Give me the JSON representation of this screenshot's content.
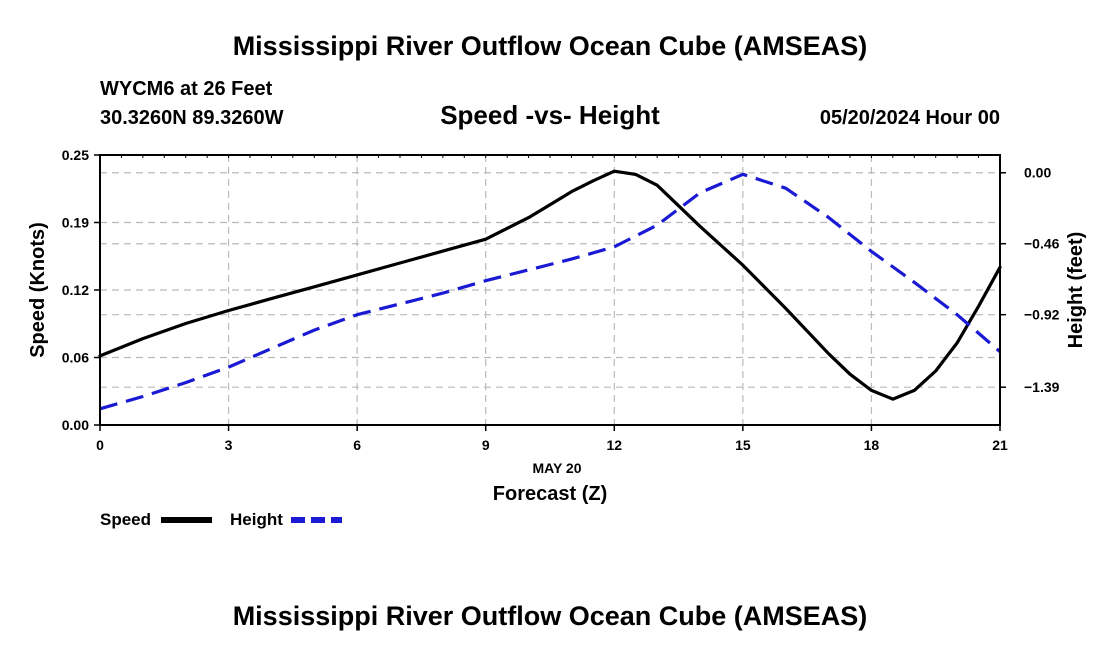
{
  "page_title": "Mississippi River Outflow Ocean Cube (AMSEAS)",
  "footer_title": "Mississippi River Outflow Ocean Cube (AMSEAS)",
  "station": "WYCM6 at 26 Feet",
  "coordinates": "30.3260N  89.3260W",
  "datetime": "05/20/2024 Hour 00",
  "chart_data": {
    "type": "line",
    "title": "Speed -vs- Height",
    "xlabel": "Forecast (Z)",
    "date_label": "MAY 20",
    "ylabel": "Speed (Knots)",
    "y2label": "Height (feet)",
    "xlim": [
      0,
      21
    ],
    "ylim": [
      0,
      0.25
    ],
    "y2lim": [
      -1.635,
      0.115
    ],
    "x_ticks": [
      0,
      3,
      6,
      9,
      12,
      15,
      18,
      21
    ],
    "x_tick_labels": [
      "0",
      "3",
      "6",
      "9",
      "12",
      "15",
      "18",
      "21"
    ],
    "y_ticks": [
      0,
      0.0625,
      0.125,
      0.1875,
      0.25
    ],
    "y_tick_labels": [
      "0.00",
      "0.06",
      "0.12",
      "0.19",
      "0.25"
    ],
    "y2_ticks": [
      0.0,
      -0.46,
      -0.92,
      -1.39
    ],
    "y2_tick_labels": [
      "0.00",
      "−0.46",
      "−0.92",
      "−1.39"
    ],
    "legend": {
      "speed_label": "Speed",
      "height_label": "Height"
    },
    "series": [
      {
        "name": "Speed",
        "axis": "left",
        "color": "#000000",
        "style": "solid",
        "x": [
          0,
          1,
          2,
          3,
          4,
          5,
          6,
          7,
          8,
          9,
          10,
          10.5,
          11,
          11.5,
          12,
          12.5,
          13,
          14,
          15,
          16,
          17,
          17.5,
          18,
          18.5,
          19,
          19.5,
          20,
          20.5,
          21
        ],
        "values": [
          0.064,
          0.08,
          0.094,
          0.106,
          0.117,
          0.128,
          0.139,
          0.15,
          0.161,
          0.172,
          0.192,
          0.204,
          0.216,
          0.226,
          0.235,
          0.232,
          0.222,
          0.184,
          0.148,
          0.108,
          0.066,
          0.047,
          0.032,
          0.024,
          0.032,
          0.05,
          0.076,
          0.11,
          0.146
        ]
      },
      {
        "name": "Height",
        "axis": "right",
        "color": "#1a1ad4",
        "style": "dashed",
        "x": [
          0,
          1,
          2,
          3,
          4,
          5,
          6,
          7,
          8,
          9,
          10,
          11,
          12,
          13,
          14,
          15,
          16,
          17,
          18,
          19,
          20,
          21
        ],
        "values": [
          -1.53,
          -1.45,
          -1.36,
          -1.26,
          -1.14,
          -1.02,
          -0.92,
          -0.85,
          -0.78,
          -0.7,
          -0.63,
          -0.56,
          -0.48,
          -0.34,
          -0.13,
          -0.01,
          -0.1,
          -0.29,
          -0.51,
          -0.71,
          -0.92,
          -1.16
        ]
      }
    ]
  }
}
